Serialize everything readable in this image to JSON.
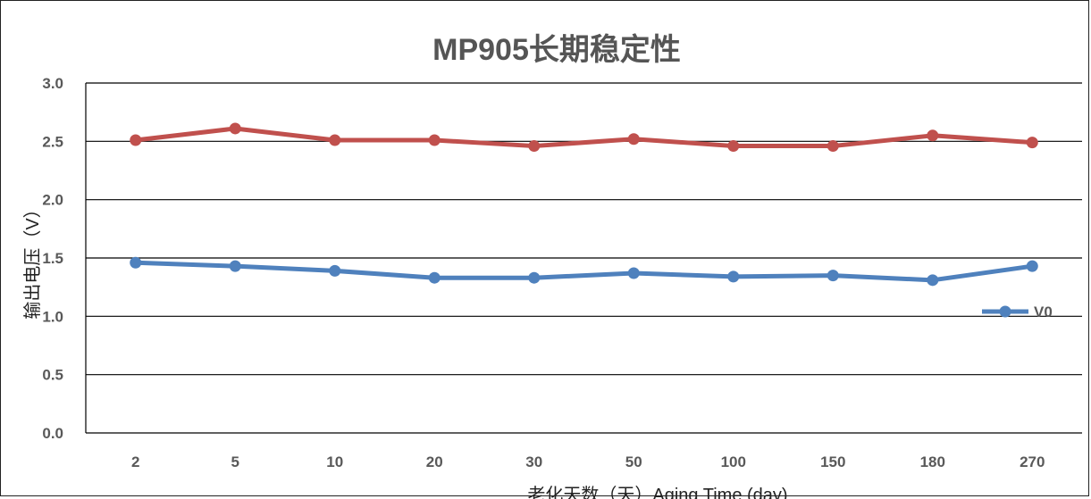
{
  "chart_data": {
    "type": "line",
    "title": "MP905长期稳定性",
    "xlabel": "老化天数（天）Aging Time (day)",
    "ylabel": "输出电压（V）",
    "categories": [
      "2",
      "5",
      "10",
      "20",
      "30",
      "50",
      "100",
      "150",
      "180",
      "270"
    ],
    "ylim": [
      0,
      3.0
    ],
    "yticks": [
      "0.0",
      "0.5",
      "1.0",
      "1.5",
      "2.0",
      "2.5",
      "3.0"
    ],
    "grid": true,
    "legend_position": "right",
    "series": [
      {
        "color": "#c0504d",
        "values": [
          2.51,
          2.61,
          2.51,
          2.51,
          2.46,
          2.52,
          2.46,
          2.46,
          2.55,
          2.49
        ]
      },
      {
        "name": "V0",
        "color": "#4f81bd",
        "values": [
          1.46,
          1.43,
          1.39,
          1.33,
          1.33,
          1.37,
          1.34,
          1.35,
          1.31,
          1.43
        ]
      }
    ]
  }
}
